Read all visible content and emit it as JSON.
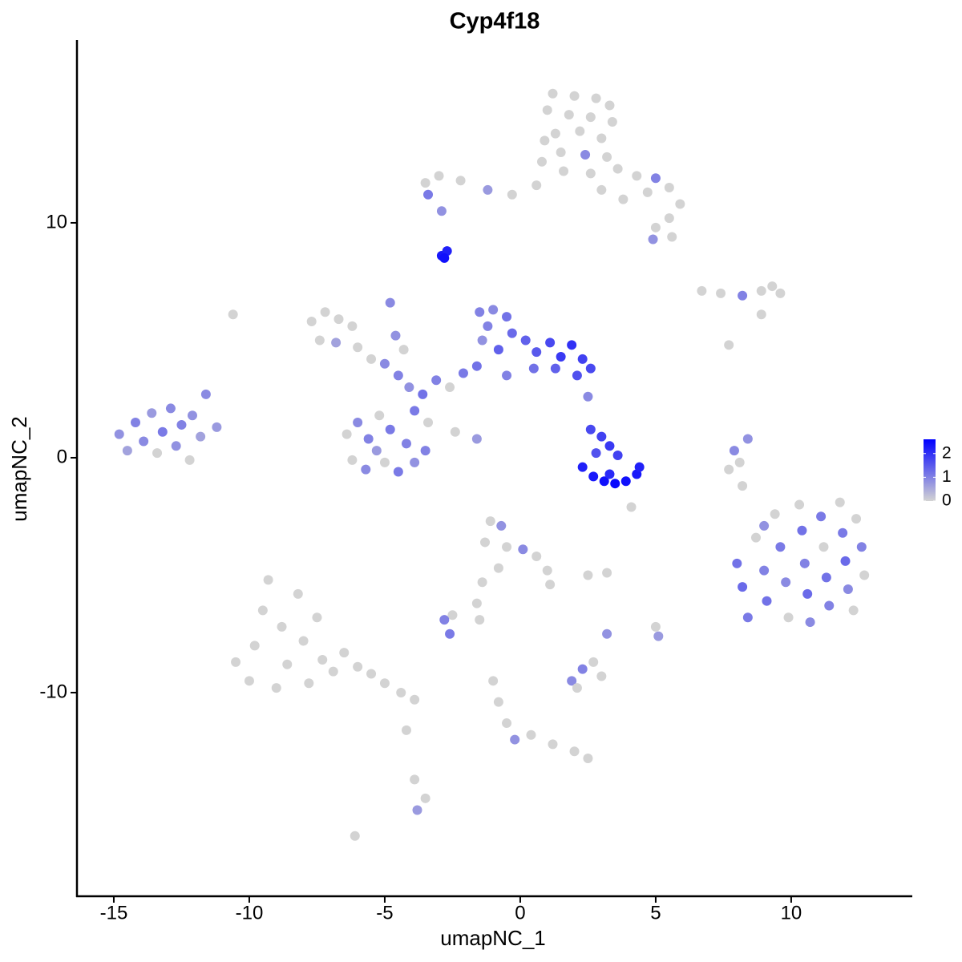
{
  "chart_data": {
    "type": "scatter",
    "title": "Cyp4f18",
    "x_label": "umapNC_1",
    "y_label": "umapNC_2",
    "xlim": [
      -16.36,
      14.47
    ],
    "ylim": [
      -18.67,
      17.78
    ],
    "xticks": [
      -15,
      -10,
      -5,
      0,
      5,
      10
    ],
    "yticks": [
      -10,
      0,
      10
    ],
    "color_low": "#d3d3d3",
    "color_high": "#0000ff",
    "colorbar_lim": [
      0,
      2.6
    ],
    "colorbar_ticks": [
      0,
      1,
      2
    ],
    "points": [
      [
        1.2,
        15.5,
        0
      ],
      [
        2.0,
        15.4,
        0
      ],
      [
        2.8,
        15.3,
        0
      ],
      [
        3.3,
        15.0,
        0
      ],
      [
        1.0,
        14.8,
        0
      ],
      [
        1.8,
        14.6,
        0
      ],
      [
        2.6,
        14.5,
        0
      ],
      [
        3.4,
        14.3,
        0
      ],
      [
        1.3,
        13.8,
        0
      ],
      [
        2.2,
        13.9,
        0
      ],
      [
        3.0,
        13.6,
        0
      ],
      [
        1.5,
        13.0,
        0
      ],
      [
        2.4,
        12.9,
        0.9
      ],
      [
        3.2,
        12.8,
        0
      ],
      [
        1.6,
        12.2,
        0
      ],
      [
        2.6,
        12.1,
        0
      ],
      [
        3.6,
        12.3,
        0
      ],
      [
        4.3,
        12.0,
        0
      ],
      [
        5.0,
        11.9,
        1.0
      ],
      [
        5.5,
        11.5,
        0
      ],
      [
        4.7,
        11.3,
        0
      ],
      [
        5.9,
        10.8,
        0
      ],
      [
        5.5,
        10.2,
        0
      ],
      [
        5.0,
        9.8,
        0
      ],
      [
        5.6,
        9.4,
        0
      ],
      [
        4.9,
        9.3,
        0.8
      ],
      [
        3.8,
        11.0,
        0
      ],
      [
        3.0,
        11.4,
        0
      ],
      [
        0.6,
        11.6,
        0
      ],
      [
        -0.3,
        11.2,
        0
      ],
      [
        -1.2,
        11.4,
        0.7
      ],
      [
        -2.2,
        11.8,
        0
      ],
      [
        -3.0,
        12.0,
        0
      ],
      [
        -3.5,
        11.7,
        0
      ],
      [
        -3.4,
        11.2,
        1.1
      ],
      [
        -2.9,
        10.5,
        0.8
      ],
      [
        0.9,
        13.5,
        0
      ],
      [
        0.8,
        12.6,
        0
      ],
      [
        -2.9,
        8.6,
        2.3
      ],
      [
        -2.7,
        8.8,
        2.2
      ],
      [
        -2.8,
        8.5,
        2.4
      ],
      [
        6.7,
        7.1,
        0
      ],
      [
        7.4,
        7.0,
        0
      ],
      [
        8.2,
        6.9,
        1.0
      ],
      [
        8.9,
        7.1,
        0
      ],
      [
        9.6,
        7.0,
        0
      ],
      [
        9.3,
        7.3,
        0
      ],
      [
        8.9,
        6.1,
        0
      ],
      [
        7.7,
        4.8,
        0
      ],
      [
        -14.8,
        1.0,
        0.8
      ],
      [
        -14.5,
        0.3,
        0.6
      ],
      [
        -14.2,
        1.5,
        1.0
      ],
      [
        -13.9,
        0.7,
        0.9
      ],
      [
        -13.6,
        1.9,
        0.7
      ],
      [
        -13.4,
        0.2,
        0
      ],
      [
        -13.2,
        1.1,
        1.1
      ],
      [
        -12.9,
        2.1,
        0.9
      ],
      [
        -12.7,
        0.5,
        0.8
      ],
      [
        -12.5,
        1.4,
        1.0
      ],
      [
        -12.2,
        -0.1,
        0
      ],
      [
        -12.1,
        1.8,
        0.8
      ],
      [
        -11.8,
        0.9,
        0.6
      ],
      [
        -11.6,
        2.7,
        0.9
      ],
      [
        -11.2,
        1.3,
        0.7
      ],
      [
        -10.6,
        6.1,
        0
      ],
      [
        -7.7,
        5.8,
        0
      ],
      [
        -7.2,
        6.2,
        0
      ],
      [
        -6.7,
        5.9,
        0
      ],
      [
        -6.2,
        5.6,
        0
      ],
      [
        -7.4,
        5.0,
        0
      ],
      [
        -6.8,
        4.9,
        0.6
      ],
      [
        -6.0,
        4.7,
        0
      ],
      [
        -5.5,
        4.2,
        0
      ],
      [
        -5.0,
        4.0,
        0.9
      ],
      [
        -4.5,
        3.5,
        1.0
      ],
      [
        -4.1,
        3.0,
        0.8
      ],
      [
        -3.6,
        2.7,
        1.2
      ],
      [
        -3.1,
        3.3,
        1.0
      ],
      [
        -2.6,
        3.0,
        0
      ],
      [
        -2.1,
        3.6,
        1.1
      ],
      [
        -1.6,
        3.9,
        1.2
      ],
      [
        -4.6,
        5.2,
        0.8
      ],
      [
        -4.8,
        6.6,
        0.9
      ],
      [
        -4.3,
        4.6,
        0
      ],
      [
        -3.9,
        2.0,
        1.1
      ],
      [
        -3.4,
        1.5,
        0
      ],
      [
        -2.4,
        1.1,
        0
      ],
      [
        -1.6,
        0.8,
        0.7
      ],
      [
        -6.4,
        1.0,
        0
      ],
      [
        -6.0,
        1.5,
        0.9
      ],
      [
        -5.6,
        0.8,
        1.0
      ],
      [
        -5.2,
        1.8,
        0
      ],
      [
        -4.8,
        1.2,
        1.1
      ],
      [
        -4.2,
        0.6,
        1.0
      ],
      [
        -6.2,
        -0.1,
        0
      ],
      [
        -5.7,
        -0.5,
        0.9
      ],
      [
        -5.0,
        -0.2,
        0
      ],
      [
        -4.5,
        -0.6,
        1.1
      ],
      [
        -3.9,
        -0.2,
        0.8
      ],
      [
        -3.5,
        0.3,
        1.0
      ],
      [
        -5.3,
        0.3,
        0.7
      ],
      [
        -1.5,
        6.2,
        1.0
      ],
      [
        -1.0,
        6.3,
        0.9
      ],
      [
        -0.5,
        6.0,
        1.2
      ],
      [
        -1.2,
        5.6,
        1.0
      ],
      [
        -0.3,
        5.3,
        1.3
      ],
      [
        -1.4,
        5.0,
        0.8
      ],
      [
        -0.8,
        4.6,
        1.4
      ],
      [
        0.2,
        5.0,
        1.4
      ],
      [
        0.6,
        4.5,
        1.5
      ],
      [
        1.1,
        4.9,
        1.7
      ],
      [
        1.5,
        4.3,
        1.9
      ],
      [
        1.9,
        4.8,
        2.0
      ],
      [
        2.3,
        4.2,
        1.8
      ],
      [
        2.6,
        3.8,
        1.7
      ],
      [
        2.1,
        3.5,
        1.6
      ],
      [
        1.3,
        3.8,
        1.4
      ],
      [
        0.5,
        3.8,
        1.2
      ],
      [
        -0.5,
        3.5,
        1.0
      ],
      [
        2.5,
        2.6,
        0.9
      ],
      [
        2.3,
        -0.4,
        2.2
      ],
      [
        2.7,
        -0.8,
        2.3
      ],
      [
        3.1,
        -1.0,
        2.4
      ],
      [
        3.5,
        -1.1,
        2.5
      ],
      [
        3.9,
        -1.0,
        2.4
      ],
      [
        4.3,
        -0.7,
        2.3
      ],
      [
        4.4,
        -0.4,
        2.2
      ],
      [
        3.3,
        -0.7,
        2.1
      ],
      [
        2.6,
        1.2,
        1.7
      ],
      [
        3.0,
        0.9,
        1.8
      ],
      [
        3.3,
        0.5,
        1.9
      ],
      [
        2.8,
        0.2,
        1.6
      ],
      [
        3.6,
        0.1,
        1.8
      ],
      [
        8.0,
        -4.5,
        1.2
      ],
      [
        8.2,
        -5.5,
        1.3
      ],
      [
        8.4,
        -6.8,
        1.1
      ],
      [
        8.7,
        -3.4,
        0
      ],
      [
        9.0,
        -4.8,
        1.0
      ],
      [
        9.1,
        -6.1,
        1.2
      ],
      [
        9.4,
        -2.4,
        0
      ],
      [
        9.6,
        -3.8,
        1.1
      ],
      [
        9.8,
        -5.3,
        0.9
      ],
      [
        9.9,
        -6.8,
        0
      ],
      [
        10.3,
        -2.0,
        0
      ],
      [
        10.4,
        -3.1,
        1.2
      ],
      [
        10.5,
        -4.5,
        1.0
      ],
      [
        10.6,
        -5.8,
        1.3
      ],
      [
        10.7,
        -7.0,
        0.9
      ],
      [
        11.1,
        -2.5,
        1.1
      ],
      [
        11.2,
        -3.8,
        0
      ],
      [
        11.3,
        -5.1,
        1.2
      ],
      [
        11.4,
        -6.3,
        1.0
      ],
      [
        11.8,
        -1.9,
        0
      ],
      [
        11.9,
        -3.2,
        1.1
      ],
      [
        12.0,
        -4.4,
        1.3
      ],
      [
        12.1,
        -5.6,
        0.9
      ],
      [
        12.4,
        -2.6,
        0
      ],
      [
        12.6,
        -3.8,
        1.0
      ],
      [
        12.7,
        -5.0,
        0
      ],
      [
        12.3,
        -6.5,
        0
      ],
      [
        9.0,
        -2.9,
        0.8
      ],
      [
        -10.5,
        -8.7,
        0
      ],
      [
        -10.0,
        -9.5,
        0
      ],
      [
        -9.8,
        -8.0,
        0
      ],
      [
        -9.5,
        -6.5,
        0
      ],
      [
        -9.3,
        -5.2,
        0
      ],
      [
        -9.0,
        -9.8,
        0
      ],
      [
        -8.8,
        -7.2,
        0
      ],
      [
        -8.6,
        -8.8,
        0
      ],
      [
        -8.2,
        -5.8,
        0
      ],
      [
        -8.0,
        -7.8,
        0
      ],
      [
        -7.8,
        -9.6,
        0
      ],
      [
        -7.5,
        -6.8,
        0
      ],
      [
        -7.3,
        -8.6,
        0
      ],
      [
        -6.9,
        -9.1,
        0
      ],
      [
        -6.5,
        -8.3,
        0
      ],
      [
        -6.0,
        -8.9,
        0
      ],
      [
        -5.5,
        -9.2,
        0
      ],
      [
        -5.0,
        -9.6,
        0
      ],
      [
        -4.4,
        -10.0,
        0
      ],
      [
        -3.9,
        -10.3,
        0
      ],
      [
        -4.2,
        -11.6,
        0
      ],
      [
        -3.9,
        -13.7,
        0
      ],
      [
        -3.5,
        -14.5,
        0
      ],
      [
        -3.8,
        -15.0,
        0.7
      ],
      [
        -6.1,
        -16.1,
        0
      ],
      [
        -1.1,
        -2.7,
        0
      ],
      [
        -0.7,
        -2.9,
        0.8
      ],
      [
        -1.3,
        -3.6,
        0
      ],
      [
        -0.5,
        -3.8,
        0
      ],
      [
        0.1,
        -3.9,
        0.9
      ],
      [
        0.6,
        -4.2,
        0
      ],
      [
        1.0,
        -4.8,
        0
      ],
      [
        1.1,
        -5.4,
        0
      ],
      [
        -0.8,
        -4.7,
        0
      ],
      [
        -1.4,
        -5.3,
        0
      ],
      [
        -1.6,
        -6.2,
        0
      ],
      [
        -2.5,
        -6.7,
        0
      ],
      [
        -2.8,
        -6.9,
        1.0
      ],
      [
        -2.6,
        -7.5,
        1.1
      ],
      [
        -1.5,
        -6.9,
        0
      ],
      [
        1.9,
        -9.5,
        0.9
      ],
      [
        2.3,
        -9.0,
        1.0
      ],
      [
        2.7,
        -8.7,
        0
      ],
      [
        3.0,
        -9.3,
        0
      ],
      [
        2.1,
        -9.8,
        0
      ],
      [
        3.2,
        -7.5,
        0.8
      ],
      [
        2.5,
        -5.0,
        0
      ],
      [
        3.2,
        -4.9,
        0
      ],
      [
        5.0,
        -7.2,
        0
      ],
      [
        5.1,
        -7.6,
        0.7
      ],
      [
        4.1,
        -2.1,
        0
      ],
      [
        -1.0,
        -9.5,
        0
      ],
      [
        -0.8,
        -10.4,
        0
      ],
      [
        -0.5,
        -11.3,
        0
      ],
      [
        -0.2,
        -12.0,
        0.8
      ],
      [
        0.4,
        -11.8,
        0
      ],
      [
        1.2,
        -12.2,
        0
      ],
      [
        2.0,
        -12.5,
        0
      ],
      [
        2.5,
        -12.8,
        0
      ],
      [
        7.7,
        -0.5,
        0
      ],
      [
        7.9,
        0.3,
        0.9
      ],
      [
        8.2,
        -1.2,
        0
      ],
      [
        8.4,
        0.8,
        0.8
      ],
      [
        8.1,
        -0.2,
        0
      ]
    ]
  }
}
